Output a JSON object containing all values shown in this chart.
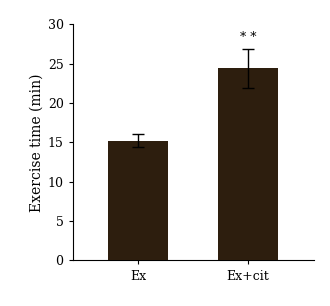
{
  "categories": [
    "Ex",
    "Ex+cit"
  ],
  "values": [
    15.2,
    24.4
  ],
  "errors": [
    0.85,
    2.5
  ],
  "bar_color": "#2d1e0e",
  "ylabel": "Exercise time (min)",
  "ylim": [
    0,
    30
  ],
  "yticks": [
    0,
    5,
    10,
    15,
    20,
    25,
    30
  ],
  "significance": [
    "",
    "* *"
  ],
  "sig_fontsize": 9,
  "bar_width": 0.55,
  "figsize": [
    3.3,
    3.06
  ],
  "dpi": 100,
  "background_color": "#ffffff",
  "tick_fontsize": 9,
  "label_fontsize": 10
}
